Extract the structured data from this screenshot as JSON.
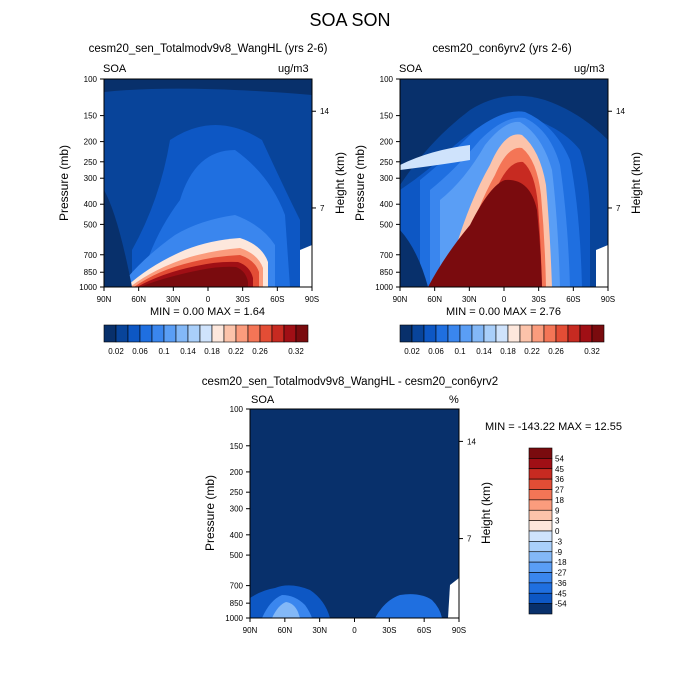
{
  "page": {
    "title": "SOA SON"
  },
  "colors": {
    "palette": [
      "#08306b",
      "#08449a",
      "#0d57c4",
      "#1f6fe0",
      "#3a86ee",
      "#5a9ef5",
      "#83b8f7",
      "#a9cffa",
      "#cfe3fc",
      "#fde7dc",
      "#fcc3aa",
      "#fb9c7d",
      "#f47556",
      "#e34d35",
      "#c72a21",
      "#a00f15",
      "#7a0b0e"
    ]
  },
  "panels": [
    {
      "title": "cesm20_sen_Totalmodv9v8_WangHL (yrs 2-6)",
      "left_label": "SOA",
      "right_label": "ug/m3",
      "stats": "MIN =   0.00   MAX =    1.64",
      "ylabel": "Pressure (mb)",
      "y2label": "Height (km)"
    },
    {
      "title": "cesm20_con6yrv2 (yrs 2-6)",
      "left_label": "SOA",
      "right_label": "ug/m3",
      "stats": "MIN =   0.00   MAX =    2.76",
      "ylabel": "Pressure (mb)",
      "y2label": "Height (km)"
    },
    {
      "title": "cesm20_sen_Totalmodv9v8_WangHL - cesm20_con6yrv2",
      "left_label": "SOA",
      "right_label": "%",
      "stats": "MIN = -143.22   MAX =   12.55",
      "ylabel": "Pressure (mb)",
      "y2label": "Height (km)"
    }
  ],
  "chart_data": [
    {
      "type": "heatmap",
      "variable": "SOA",
      "units": "ug/m3",
      "x_ticks": [
        "90N",
        "60N",
        "30N",
        "0",
        "30S",
        "60S",
        "90S"
      ],
      "y_ticks": [
        "100",
        "150",
        "200",
        "250",
        "300",
        "400",
        "500",
        "700",
        "850",
        "1000"
      ],
      "y2_ticks": [
        "14",
        "7"
      ],
      "colorbar_levels": [
        0.02,
        0.04,
        0.06,
        0.08,
        0.1,
        0.12,
        0.14,
        0.16,
        0.18,
        0.2,
        0.22,
        0.24,
        0.26,
        0.28,
        0.3,
        0.32
      ],
      "colorbar_labels": [
        "0.02",
        "0.06",
        "0.1",
        "0.14",
        "0.18",
        "0.22",
        "0.26",
        "0.32"
      ],
      "min": 0.0,
      "max": 1.64
    },
    {
      "type": "heatmap",
      "variable": "SOA",
      "units": "ug/m3",
      "x_ticks": [
        "90N",
        "60N",
        "30N",
        "0",
        "30S",
        "60S",
        "90S"
      ],
      "y_ticks": [
        "100",
        "150",
        "200",
        "250",
        "300",
        "400",
        "500",
        "700",
        "850",
        "1000"
      ],
      "y2_ticks": [
        "14",
        "7"
      ],
      "colorbar_levels": [
        0.02,
        0.04,
        0.06,
        0.08,
        0.1,
        0.12,
        0.14,
        0.16,
        0.18,
        0.2,
        0.22,
        0.24,
        0.26,
        0.28,
        0.3,
        0.32
      ],
      "colorbar_labels": [
        "0.02",
        "0.06",
        "0.1",
        "0.14",
        "0.18",
        "0.22",
        "0.26",
        "0.32"
      ],
      "min": 0.0,
      "max": 2.76
    },
    {
      "type": "heatmap",
      "variable": "SOA",
      "units": "%",
      "x_ticks": [
        "90N",
        "60N",
        "30N",
        "0",
        "30S",
        "60S",
        "90S"
      ],
      "y_ticks": [
        "100",
        "150",
        "200",
        "250",
        "300",
        "400",
        "500",
        "700",
        "850",
        "1000"
      ],
      "y2_ticks": [
        "14",
        "7"
      ],
      "colorbar_levels": [
        54,
        45,
        36,
        27,
        18,
        9,
        3,
        0,
        -3,
        -9,
        -18,
        -27,
        -36,
        -45,
        -54
      ],
      "colorbar_labels": [
        "54",
        "45",
        "36",
        "27",
        "18",
        "9",
        "3",
        "0",
        "-3",
        "-9",
        "-18",
        "-27",
        "-36",
        "-45",
        "-54"
      ],
      "min": -143.22,
      "max": 12.55
    }
  ]
}
